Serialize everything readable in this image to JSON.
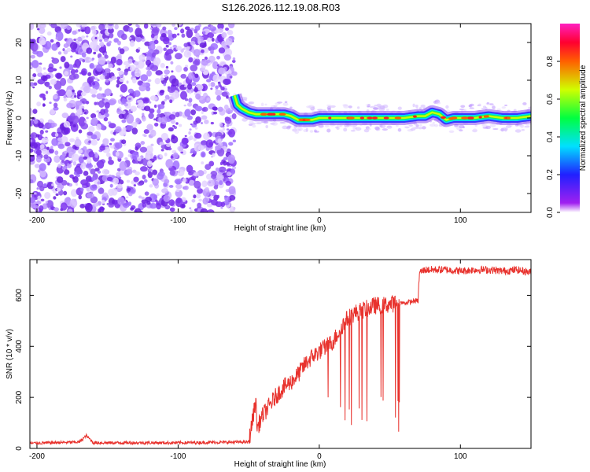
{
  "chart_data": [
    {
      "type": "heatmap",
      "title": "S126.2026.112.19.08.R03",
      "xlabel": "Height of straight line (km)",
      "ylabel": "Frequency (Hz)",
      "xlim": [
        -205,
        150
      ],
      "ylim": [
        -25,
        25
      ],
      "x_ticks": [
        -200,
        -100,
        0,
        100
      ],
      "y_ticks": [
        -20,
        -10,
        0,
        10,
        20
      ],
      "noise_region_x": [
        -205,
        -60
      ],
      "signal_region_x": [
        -60,
        150
      ],
      "ridge": {
        "x": [
          -60,
          -58,
          -55,
          -50,
          -45,
          -40,
          -35,
          -30,
          -25,
          -20,
          -15,
          -10,
          -5,
          0,
          10,
          20,
          30,
          40,
          50,
          60,
          70,
          75,
          80,
          85,
          90,
          95,
          100,
          110,
          120,
          130,
          140,
          150
        ],
        "freq": [
          6,
          3.5,
          2.5,
          1.5,
          1,
          1,
          1,
          1,
          1,
          0.5,
          -0.5,
          -0.5,
          -0.5,
          0,
          0,
          0,
          0,
          0,
          0,
          0,
          0.5,
          0.5,
          1.5,
          1,
          -0.5,
          0,
          0,
          0,
          0.5,
          0,
          0,
          0.5
        ]
      },
      "colorbar": {
        "label": "Normalized spectral amplitude",
        "range": [
          0,
          1
        ],
        "ticks": [
          "0.0",
          "0.2",
          "0.4",
          "0.6",
          "0.8"
        ]
      }
    },
    {
      "type": "line",
      "title": "",
      "xlabel": "Height of straight line (km)",
      "ylabel": "SNR (10 * v/v)",
      "xlim": [
        -205,
        150
      ],
      "ylim": [
        0,
        740
      ],
      "x_ticks": [
        -200,
        -100,
        0,
        100
      ],
      "y_ticks": [
        0,
        200,
        400,
        600
      ],
      "color": "#e8322d",
      "series": [
        {
          "name": "SNR",
          "x": [
            -205,
            -170,
            -165,
            -160,
            -100,
            -50,
            -47,
            -45,
            -44,
            -40,
            -35,
            -30,
            -25,
            -20,
            -15,
            -10,
            -5,
            0,
            5,
            10,
            15,
            20,
            25,
            30,
            35,
            40,
            45,
            50,
            55,
            60,
            65,
            70,
            71,
            75,
            80,
            90,
            100,
            110,
            120,
            130,
            140,
            150
          ],
          "values": [
            20,
            25,
            50,
            22,
            22,
            25,
            120,
            190,
            80,
            130,
            170,
            210,
            240,
            260,
            290,
            330,
            360,
            380,
            400,
            420,
            470,
            510,
            530,
            540,
            550,
            560,
            560,
            565,
            570,
            570,
            575,
            580,
            690,
            700,
            700,
            700,
            695,
            700,
            700,
            695,
            700,
            690
          ]
        }
      ]
    }
  ]
}
